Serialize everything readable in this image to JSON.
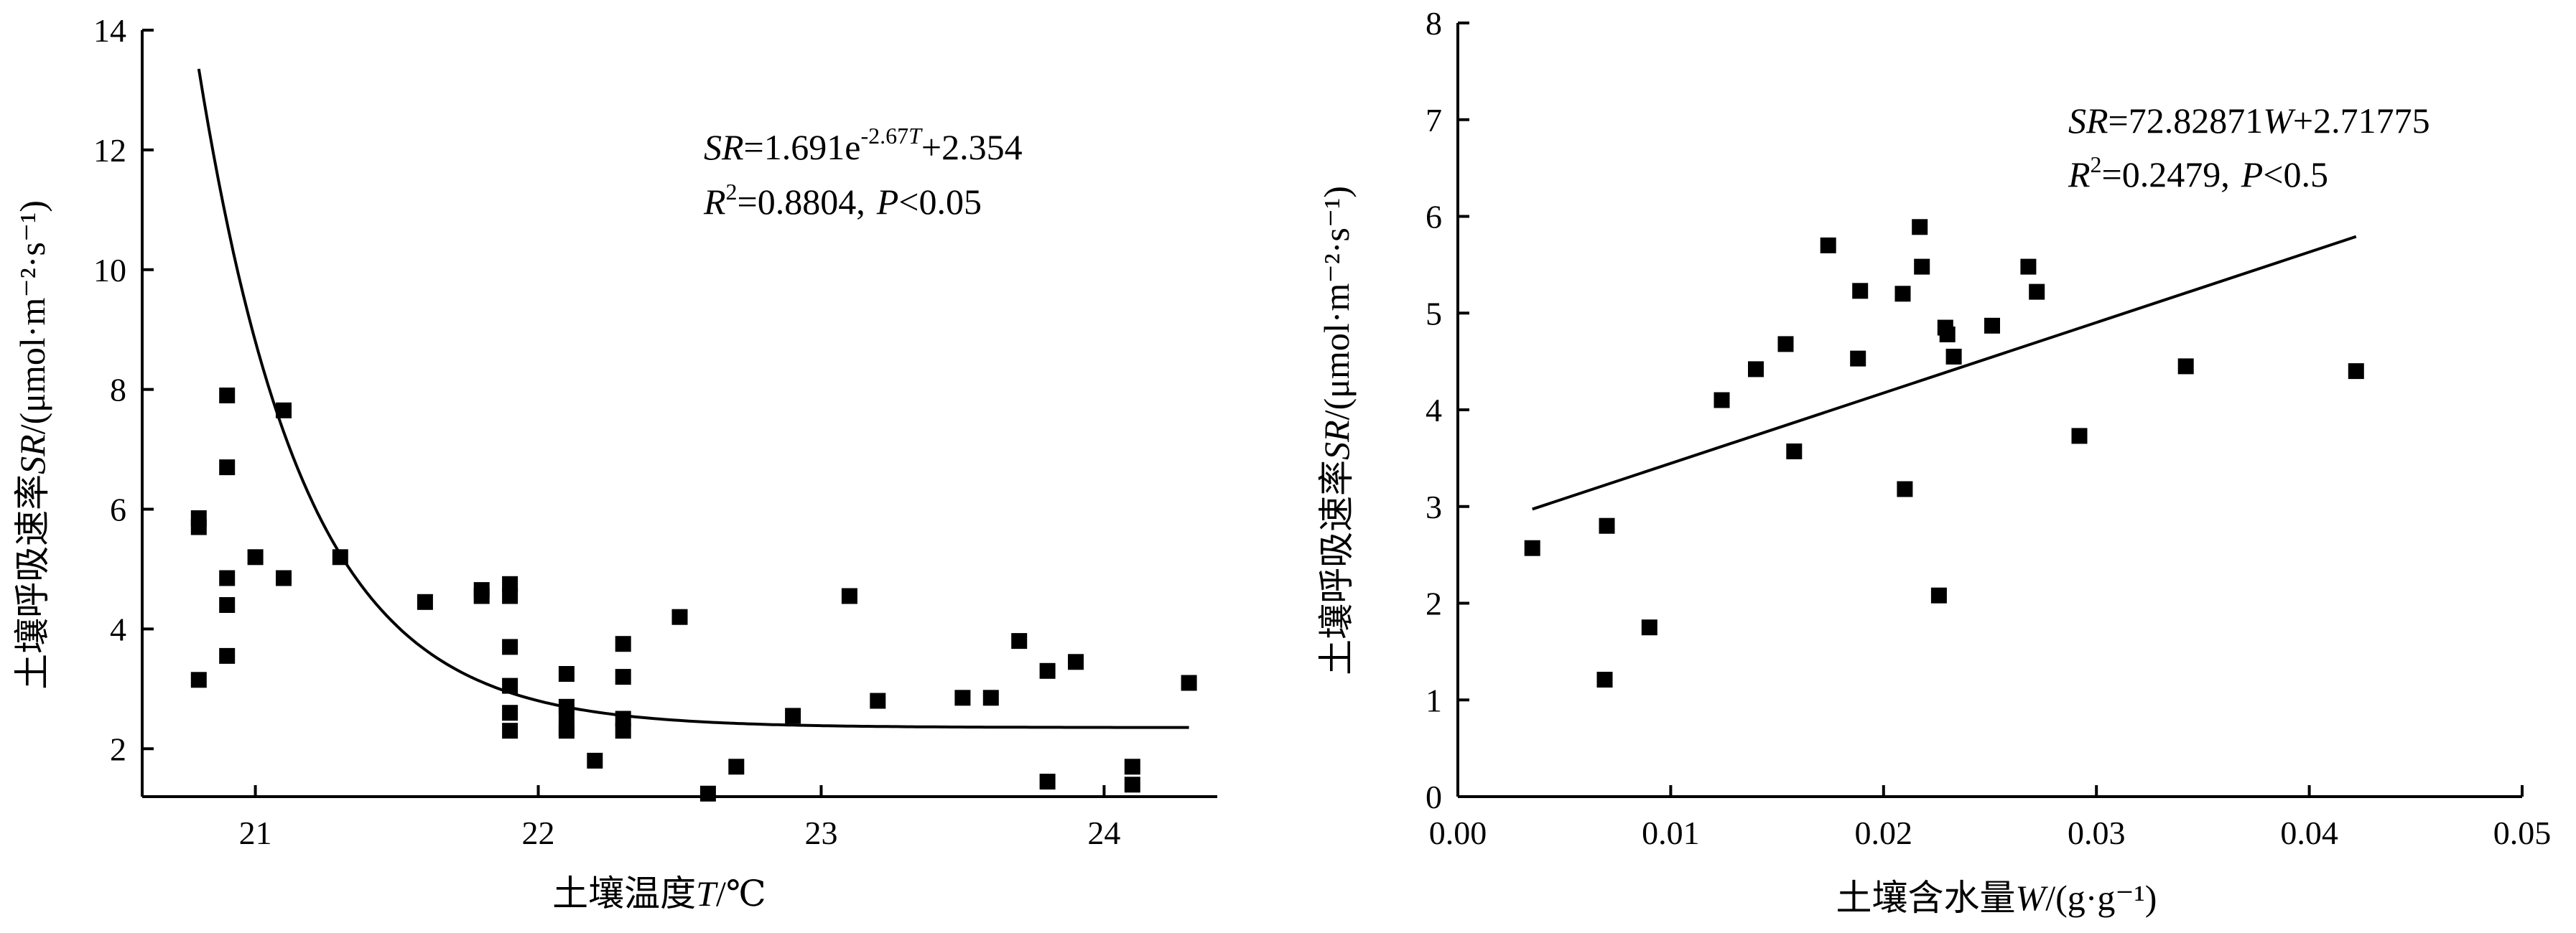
{
  "chart_data": [
    {
      "type": "scatter",
      "title": "",
      "xlabel_prefix": "土壤温度",
      "xlabel_var": "T",
      "xlabel_suffix": "/℃",
      "ylabel_prefix": "土壤呼吸速率",
      "ylabel_var": "SR",
      "ylabel_suffix": "/(μmol·m⁻²·s⁻¹)",
      "xlim": [
        20.6,
        24.4
      ],
      "ylim": [
        1.2,
        14
      ],
      "xticks": [
        "21",
        "22",
        "23",
        "24"
      ],
      "xtick_values": [
        21,
        22,
        23,
        24
      ],
      "yticks": [
        "2",
        "4",
        "6",
        "8",
        "10",
        "12",
        "14"
      ],
      "ytick_values": [
        2,
        4,
        6,
        8,
        10,
        12,
        14
      ],
      "equation": {
        "lhs": "SR",
        "eq_text": "=1.691e",
        "exp_text": "-2.67",
        "exp_var": "T",
        "tail": "+2.354",
        "r2_label": "R",
        "r2_sup": "2",
        "r2_value": "=0.8804,",
        "p_label": "P",
        "p_value": "<0.05"
      },
      "fit": {
        "kind": "exp_decay",
        "x_start": 20.8,
        "x_end": 24.3
      },
      "points": [
        [
          20.8,
          5.85
        ],
        [
          20.8,
          5.7
        ],
        [
          20.8,
          3.15
        ],
        [
          20.9,
          7.9
        ],
        [
          20.9,
          6.7
        ],
        [
          20.9,
          4.85
        ],
        [
          20.9,
          4.4
        ],
        [
          20.9,
          3.55
        ],
        [
          21.0,
          5.2
        ],
        [
          21.1,
          7.65
        ],
        [
          21.1,
          4.85
        ],
        [
          21.3,
          5.2
        ],
        [
          21.6,
          4.45
        ],
        [
          21.8,
          4.65
        ],
        [
          21.8,
          4.55
        ],
        [
          21.9,
          4.75
        ],
        [
          21.9,
          4.55
        ],
        [
          21.9,
          3.7
        ],
        [
          21.9,
          3.05
        ],
        [
          21.9,
          2.6
        ],
        [
          21.9,
          2.3
        ],
        [
          22.1,
          3.25
        ],
        [
          22.1,
          2.7
        ],
        [
          22.1,
          2.6
        ],
        [
          22.1,
          2.35
        ],
        [
          22.1,
          2.3
        ],
        [
          22.2,
          1.8
        ],
        [
          22.3,
          3.75
        ],
        [
          22.3,
          3.2
        ],
        [
          22.3,
          2.5
        ],
        [
          22.3,
          2.3
        ],
        [
          22.5,
          4.2
        ],
        [
          22.6,
          1.25
        ],
        [
          22.7,
          1.7
        ],
        [
          22.9,
          2.55
        ],
        [
          23.1,
          4.55
        ],
        [
          23.2,
          2.8
        ],
        [
          23.5,
          2.85
        ],
        [
          23.6,
          2.85
        ],
        [
          23.7,
          3.8
        ],
        [
          23.8,
          3.3
        ],
        [
          23.8,
          1.45
        ],
        [
          23.9,
          3.45
        ],
        [
          24.1,
          1.7
        ],
        [
          24.1,
          1.4
        ],
        [
          24.3,
          3.1
        ]
      ]
    },
    {
      "type": "scatter",
      "title": "",
      "xlabel_prefix": "土壤含水量",
      "xlabel_var": "W",
      "xlabel_suffix": "/(g·g⁻¹)",
      "ylabel_prefix": "土壤呼吸速率",
      "ylabel_var": "SR",
      "ylabel_suffix": "/(μmol·m⁻²·s⁻¹)",
      "xlim": [
        0,
        0.05
      ],
      "ylim": [
        0,
        8
      ],
      "xticks": [
        "0.00",
        "0.01",
        "0.02",
        "0.03",
        "0.04",
        "0.05"
      ],
      "xtick_values": [
        0,
        0.01,
        0.02,
        0.03,
        0.04,
        0.05
      ],
      "yticks": [
        "0",
        "1",
        "2",
        "3",
        "4",
        "5",
        "6",
        "7",
        "8"
      ],
      "ytick_values": [
        0,
        1,
        2,
        3,
        4,
        5,
        6,
        7,
        8
      ],
      "equation": {
        "lhs": "SR",
        "eq_text": "=72.82871",
        "var": "W",
        "tail": "+2.71775",
        "r2_label": "R",
        "r2_sup": "2",
        "r2_value": "=0.2479,",
        "p_label": "P",
        "p_value": "<0.5"
      },
      "fit": {
        "kind": "linear",
        "slope": 72.82871,
        "intercept": 2.71775,
        "x_start": 0.0035,
        "x_end": 0.0422
      },
      "points": [
        [
          0.0035,
          2.57
        ],
        [
          0.0069,
          1.21
        ],
        [
          0.007,
          2.8
        ],
        [
          0.009,
          1.75
        ],
        [
          0.0124,
          4.1
        ],
        [
          0.014,
          4.42
        ],
        [
          0.0154,
          4.68
        ],
        [
          0.0158,
          3.57
        ],
        [
          0.0174,
          5.7
        ],
        [
          0.0188,
          4.53
        ],
        [
          0.0189,
          5.23
        ],
        [
          0.0209,
          5.2
        ],
        [
          0.021,
          3.18
        ],
        [
          0.0217,
          5.89
        ],
        [
          0.0218,
          5.48
        ],
        [
          0.0226,
          2.08
        ],
        [
          0.0229,
          4.85
        ],
        [
          0.023,
          4.78
        ],
        [
          0.0233,
          4.55
        ],
        [
          0.0251,
          4.87
        ],
        [
          0.0268,
          5.48
        ],
        [
          0.0272,
          5.22
        ],
        [
          0.0292,
          3.73
        ],
        [
          0.0342,
          4.45
        ],
        [
          0.0422,
          4.4
        ]
      ]
    }
  ]
}
